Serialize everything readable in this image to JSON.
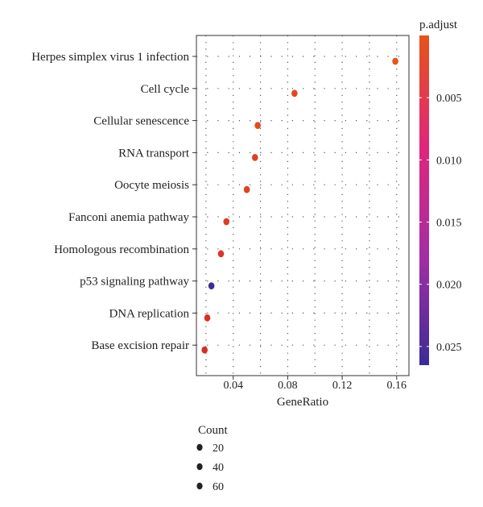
{
  "chart_data": {
    "type": "scatter",
    "xlabel": "GeneRatio",
    "x_ticks": [
      "0.04",
      "0.08",
      "0.12",
      "0.16"
    ],
    "x_tick_values": [
      0.04,
      0.08,
      0.12,
      0.16
    ],
    "xlim": [
      0.013,
      0.169
    ],
    "grid": true,
    "categories": [
      "Herpes simplex virus 1 infection",
      "Cell cycle",
      "Cellular senescence",
      "RNA transport",
      "Oocyte meiosis",
      "Fanconi anemia pathway",
      "Homologous recombination",
      "p53 signaling pathway",
      "DNA replication",
      "Base excision repair"
    ],
    "points": [
      {
        "term": "Herpes simplex virus 1 infection",
        "gene_ratio": 0.159,
        "p_adjust": 0.0001,
        "color": "#e8541a"
      },
      {
        "term": "Cell cycle",
        "gene_ratio": 0.085,
        "p_adjust": 0.0001,
        "color": "#e5461e"
      },
      {
        "term": "Cellular senescence",
        "gene_ratio": 0.058,
        "p_adjust": 0.0002,
        "color": "#e24c1f"
      },
      {
        "term": "RNA transport",
        "gene_ratio": 0.056,
        "p_adjust": 0.0003,
        "color": "#e03f24"
      },
      {
        "term": "Oocyte meiosis",
        "gene_ratio": 0.05,
        "p_adjust": 0.0004,
        "color": "#e1411f"
      },
      {
        "term": "Fanconi anemia pathway",
        "gene_ratio": 0.035,
        "p_adjust": 0.0006,
        "color": "#df3a25"
      },
      {
        "term": "Homologous recombination",
        "gene_ratio": 0.031,
        "p_adjust": 0.001,
        "color": "#de3526"
      },
      {
        "term": "p53 signaling pathway",
        "gene_ratio": 0.024,
        "p_adjust": 0.0255,
        "color": "#3b2f96"
      },
      {
        "term": "DNA replication",
        "gene_ratio": 0.021,
        "p_adjust": 0.0012,
        "color": "#da2f28"
      },
      {
        "term": "Base excision repair",
        "gene_ratio": 0.019,
        "p_adjust": 0.0014,
        "color": "#d82c2a"
      }
    ],
    "colorbar": {
      "title": "p.adjust",
      "ticks": [
        "0.005",
        "0.010",
        "0.015",
        "0.020",
        "0.025"
      ],
      "tick_values": [
        0.005,
        0.01,
        0.015,
        0.02,
        0.025
      ],
      "range": [
        0.0,
        0.0265
      ],
      "gradient": [
        "#e55418",
        "#e0267a",
        "#a52ea4",
        "#3a2c96"
      ]
    },
    "size_legend": {
      "title": "Count",
      "entries": [
        "20",
        "40",
        "60"
      ]
    }
  }
}
